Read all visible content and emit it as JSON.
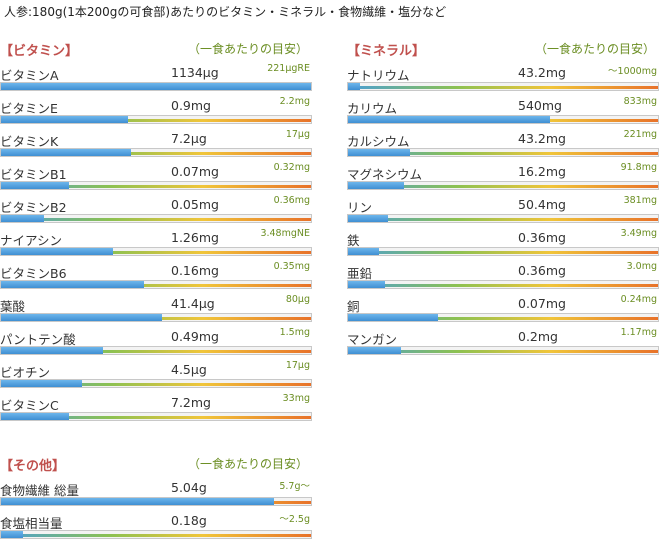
{
  "title": "人参:180g(1本200gの可食部)あたりのビタミン・ミネラル・食物繊維・塩分など",
  "colors": {
    "fill": "#4a94d6",
    "heading": "#c0504d",
    "guide": "#6b8e23"
  },
  "vitamins": {
    "heading": "【ビタミン】",
    "guide": "（一食あたりの目安）",
    "items": [
      {
        "name": "ビタミンA",
        "amount": "1134μg",
        "target": "221μgRE",
        "fill": 1.0
      },
      {
        "name": "ビタミンE",
        "amount": "0.9mg",
        "target": "2.2mg",
        "fill": 0.41
      },
      {
        "name": "ビタミンK",
        "amount": "7.2μg",
        "target": "17μg",
        "fill": 0.42
      },
      {
        "name": "ビタミンB1",
        "amount": "0.07mg",
        "target": "0.32mg",
        "fill": 0.22
      },
      {
        "name": "ビタミンB2",
        "amount": "0.05mg",
        "target": "0.36mg",
        "fill": 0.14
      },
      {
        "name": "ナイアシン",
        "amount": "1.26mg",
        "target": "3.48mgNE",
        "fill": 0.36
      },
      {
        "name": "ビタミンB6",
        "amount": "0.16mg",
        "target": "0.35mg",
        "fill": 0.46
      },
      {
        "name": "葉酸",
        "amount": "41.4μg",
        "target": "80μg",
        "fill": 0.52
      },
      {
        "name": "パントテン酸",
        "amount": "0.49mg",
        "target": "1.5mg",
        "fill": 0.33
      },
      {
        "name": "ビオチン",
        "amount": "4.5μg",
        "target": "17μg",
        "fill": 0.26
      },
      {
        "name": "ビタミンC",
        "amount": "7.2mg",
        "target": "33mg",
        "fill": 0.22
      }
    ]
  },
  "minerals": {
    "heading": "【ミネラル】",
    "guide": "（一食あたりの目安）",
    "items": [
      {
        "name": "ナトリウム",
        "amount": "43.2mg",
        "target": "～1000mg",
        "fill": 0.04
      },
      {
        "name": "カリウム",
        "amount": "540mg",
        "target": "833mg",
        "fill": 0.65
      },
      {
        "name": "カルシウム",
        "amount": "43.2mg",
        "target": "221mg",
        "fill": 0.2
      },
      {
        "name": "マグネシウム",
        "amount": "16.2mg",
        "target": "91.8mg",
        "fill": 0.18
      },
      {
        "name": "リン",
        "amount": "50.4mg",
        "target": "381mg",
        "fill": 0.13
      },
      {
        "name": "鉄",
        "amount": "0.36mg",
        "target": "3.49mg",
        "fill": 0.1
      },
      {
        "name": "亜鉛",
        "amount": "0.36mg",
        "target": "3.0mg",
        "fill": 0.12
      },
      {
        "name": "銅",
        "amount": "0.07mg",
        "target": "0.24mg",
        "fill": 0.29
      },
      {
        "name": "マンガン",
        "amount": "0.2mg",
        "target": "1.17mg",
        "fill": 0.17
      }
    ]
  },
  "others": {
    "heading": "【その他】",
    "guide": "（一食あたりの目安）",
    "items": [
      {
        "name": "食物繊維 総量",
        "amount": "5.04g",
        "target": "5.7g～",
        "fill": 0.88
      },
      {
        "name": "食塩相当量",
        "amount": "0.18g",
        "target": "～2.5g",
        "fill": 0.07
      }
    ]
  }
}
